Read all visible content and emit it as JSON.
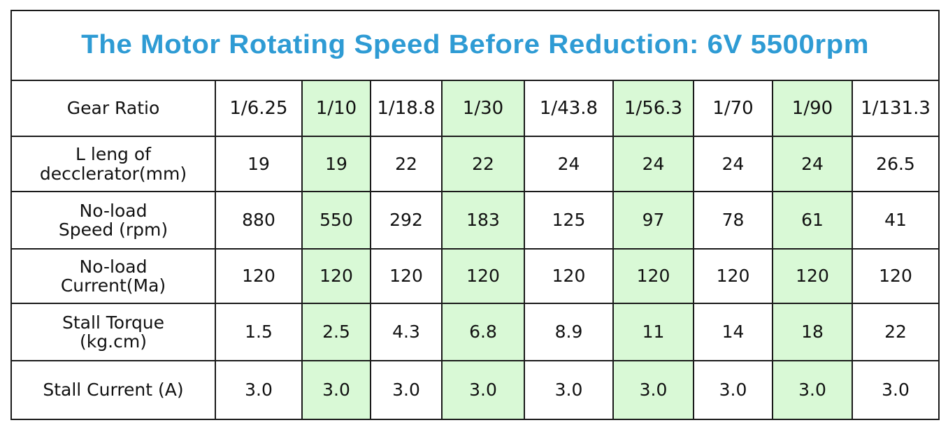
{
  "title": "The Motor Rotating Speed Before Reduction: 6V 5500rpm",
  "colors": {
    "title": "#2e9bd4",
    "highlight_column": "#d9f9d6",
    "border": "#1a1a1a"
  },
  "highlighted_columns": [
    1,
    3,
    5,
    7
  ],
  "rows": {
    "gear_ratio": {
      "label": [
        "Gear Ratio"
      ],
      "values": [
        "1/6.25",
        "1/10",
        "1/18.8",
        "1/30",
        "1/43.8",
        "1/56.3",
        "1/70",
        "1/90",
        "1/131.3"
      ]
    },
    "length": {
      "label": [
        "L leng of",
        "decclerator(mm)"
      ],
      "values": [
        "19",
        "19",
        "22",
        "22",
        "24",
        "24",
        "24",
        "24",
        "26.5"
      ]
    },
    "noload_speed": {
      "label": [
        "No-load",
        "Speed (rpm)"
      ],
      "values": [
        "880",
        "550",
        "292",
        "183",
        "125",
        "97",
        "78",
        "61",
        "41"
      ]
    },
    "noload_current": {
      "label": [
        "No-load",
        "Current(Ma)"
      ],
      "values": [
        "120",
        "120",
        "120",
        "120",
        "120",
        "120",
        "120",
        "120",
        "120"
      ]
    },
    "stall_torque": {
      "label": [
        "Stall Torque",
        "(kg.cm)"
      ],
      "values": [
        "1.5",
        "2.5",
        "4.3",
        "6.8",
        "8.9",
        "11",
        "14",
        "18",
        "22"
      ]
    },
    "stall_current": {
      "label": [
        "Stall Current (A)"
      ],
      "values": [
        "3.0",
        "3.0",
        "3.0",
        "3.0",
        "3.0",
        "3.0",
        "3.0",
        "3.0",
        "3.0"
      ]
    }
  }
}
